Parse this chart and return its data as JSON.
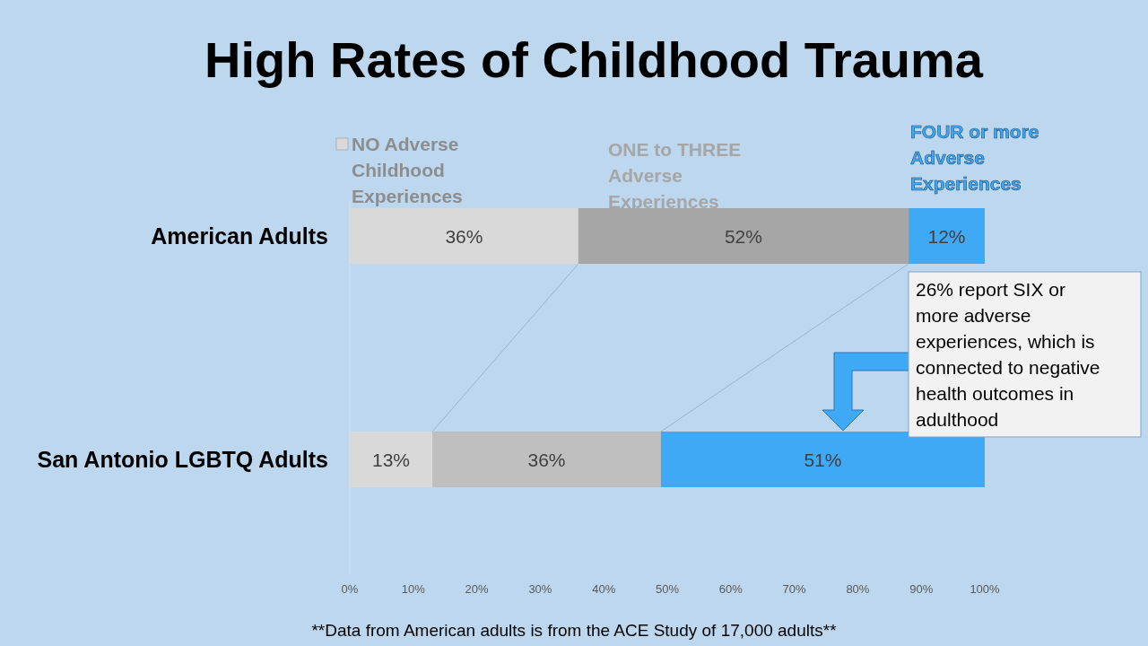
{
  "chart_data": {
    "type": "bar",
    "title": "High Rates of Childhood Trauma",
    "orientation": "horizontal",
    "stacked": true,
    "categories": [
      "American Adults",
      "San Antonio LGBTQ Adults"
    ],
    "series": [
      {
        "name": "NO Adverse Childhood Experiences",
        "colors": [
          "#d9d9d9",
          "#d9d9d9"
        ],
        "values": [
          36,
          13
        ],
        "value_labels": [
          "36%",
          "13%"
        ]
      },
      {
        "name": "ONE to THREE Adverse Experiences",
        "colors": [
          "#a6a6a6",
          "#bfbfbf"
        ],
        "values": [
          52,
          36
        ],
        "value_labels": [
          "52%",
          "36%"
        ]
      },
      {
        "name": "FOUR or more Adverse Experiences",
        "colors": [
          "#3fa9f5",
          "#3fa9f5"
        ],
        "values": [
          12,
          51
        ],
        "value_labels": [
          "12%",
          "51%"
        ]
      }
    ],
    "xlim": [
      0,
      100
    ],
    "xticks": [
      {
        "value": 0,
        "label": "0%"
      },
      {
        "value": 10,
        "label": "10%"
      },
      {
        "value": 20,
        "label": "20%"
      },
      {
        "value": 30,
        "label": "30%"
      },
      {
        "value": 40,
        "label": "40%"
      },
      {
        "value": 50,
        "label": "50%"
      },
      {
        "value": 60,
        "label": "60%"
      },
      {
        "value": 70,
        "label": "70%"
      },
      {
        "value": 80,
        "label": "80%"
      },
      {
        "value": 90,
        "label": "90%"
      },
      {
        "value": 100,
        "label": "100%"
      }
    ],
    "annotations": [
      "26% report SIX or more adverse experiences, which is connected to negative health outcomes in adulthood",
      "**Data from American adults is from the ACE Study of 17,000 adults**"
    ]
  }
}
